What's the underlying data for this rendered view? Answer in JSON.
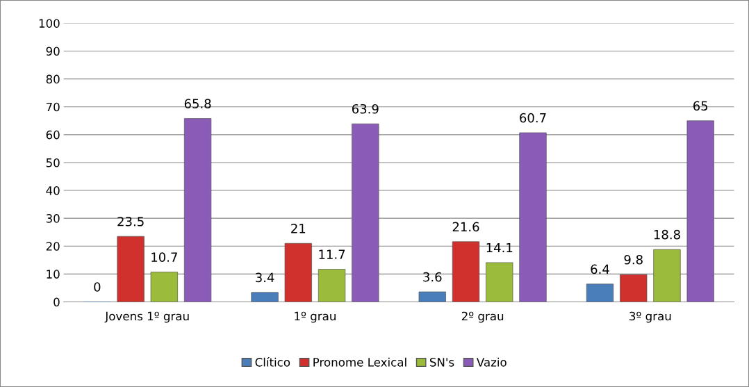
{
  "chart_data": {
    "type": "bar",
    "categories": [
      "Jovens 1º grau",
      "1º grau",
      "2º grau",
      "3º grau"
    ],
    "series": [
      {
        "name": "Clítico",
        "color": "#4a7ebb",
        "values": [
          0,
          3.4,
          3.6,
          6.4
        ]
      },
      {
        "name": "Pronome Lexical",
        "color": "#d0312d",
        "values": [
          23.5,
          21,
          21.6,
          9.8
        ]
      },
      {
        "name": "SN's",
        "color": "#9bbb3b",
        "values": [
          10.7,
          11.7,
          14.1,
          18.8
        ]
      },
      {
        "name": "Vazio",
        "color": "#8a5cb8",
        "values": [
          65.8,
          63.9,
          60.7,
          65
        ]
      }
    ],
    "ylim": [
      0,
      100
    ],
    "yticks": [
      0,
      10,
      20,
      30,
      40,
      50,
      60,
      70,
      80,
      90,
      100
    ],
    "grid": "y",
    "legend": "bottom",
    "data_labels": true
  }
}
